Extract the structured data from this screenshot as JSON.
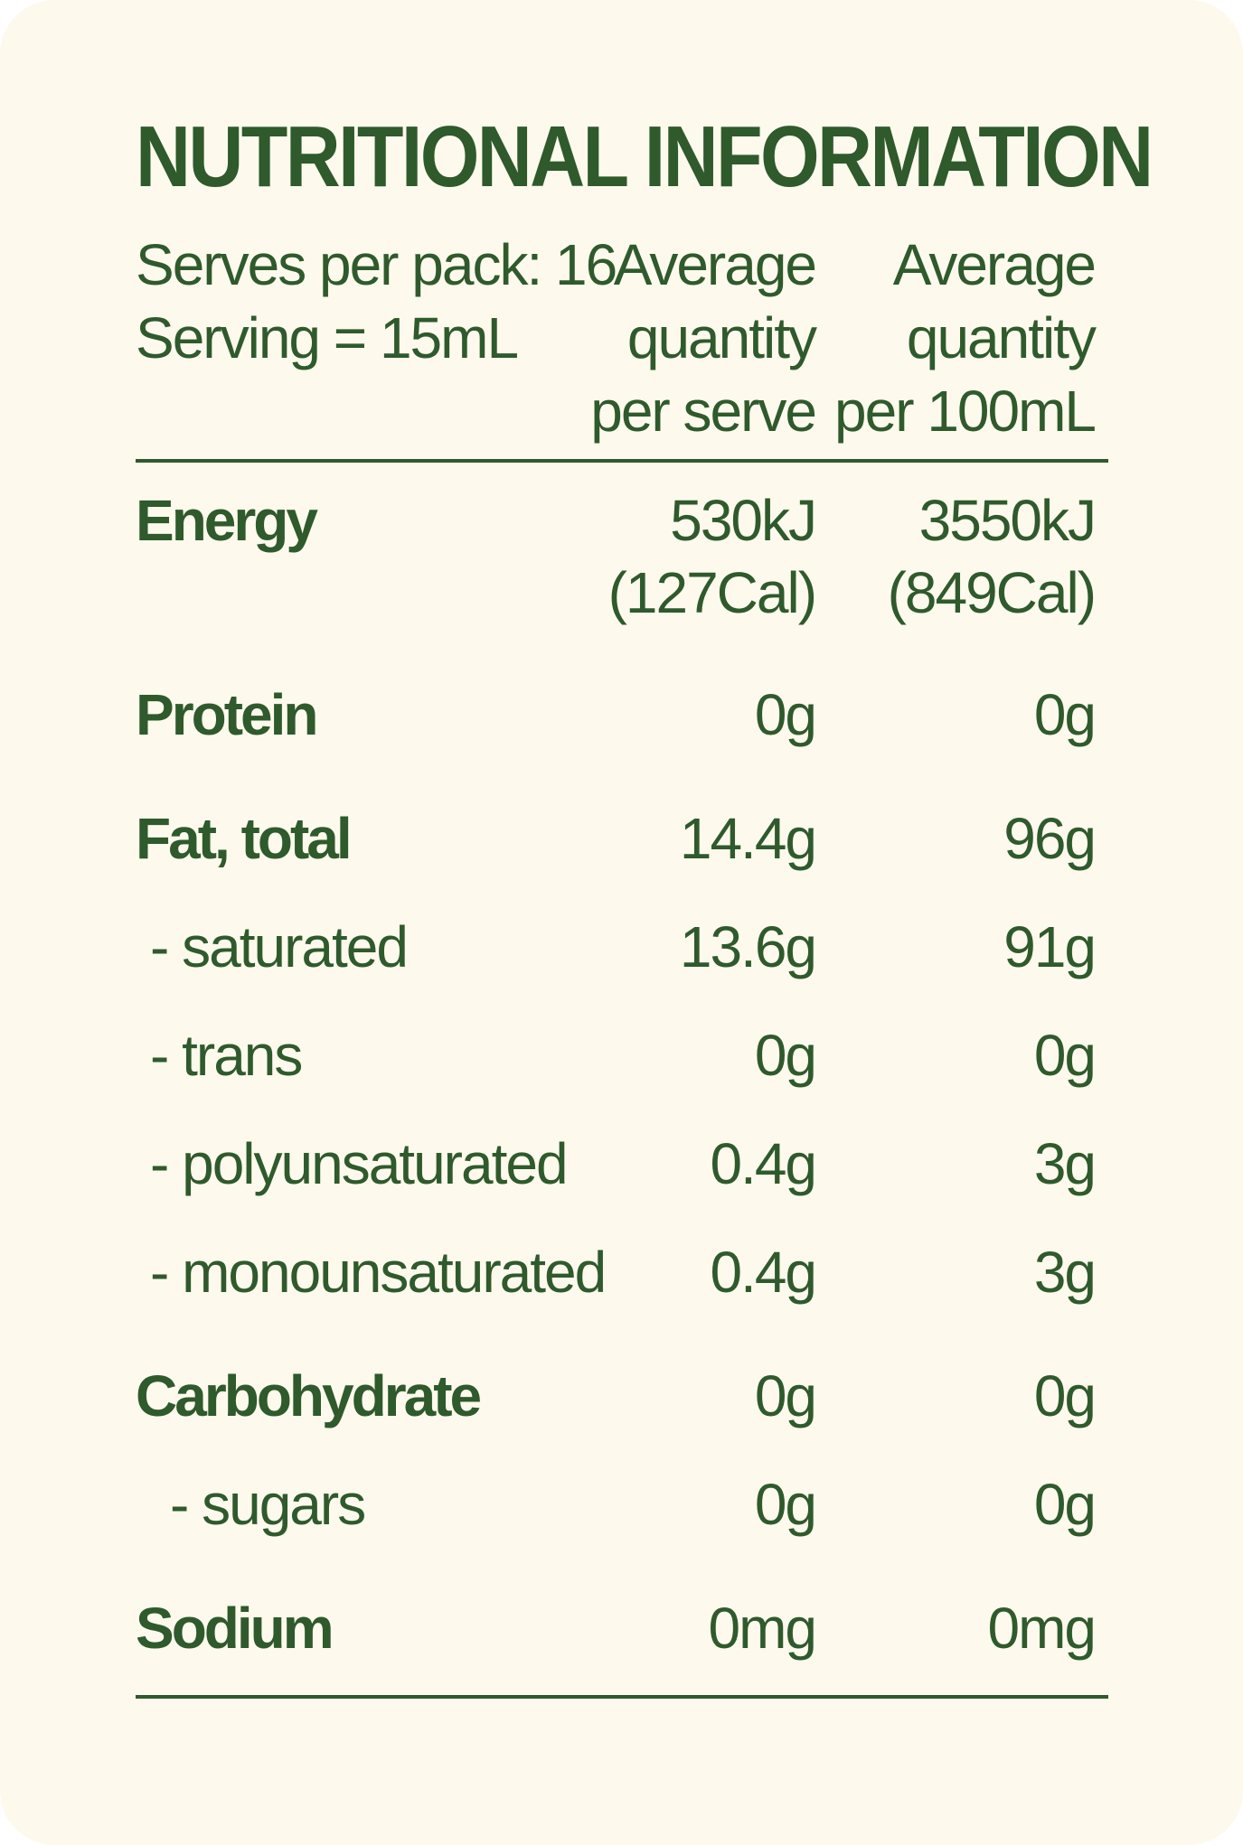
{
  "panel": {
    "title": "NUTRITIONAL INFORMATION",
    "serves_per_pack": "Serves per pack: 16",
    "serving_size": "Serving = 15mL",
    "column_headers": {
      "per_serve": [
        "Average",
        "quantity",
        "per serve"
      ],
      "per_100ml": [
        "Average",
        "quantity",
        "per 100mL"
      ]
    },
    "rows": {
      "energy": {
        "label": "Energy",
        "per_serve": [
          "530kJ",
          "(127Cal)"
        ],
        "per_100ml": [
          "3550kJ",
          "(849Cal)"
        ]
      },
      "protein": {
        "label": "Protein",
        "per_serve": "0g",
        "per_100ml": "0g"
      },
      "fat_total": {
        "label": "Fat, total",
        "per_serve": "14.4g",
        "per_100ml": "96g"
      },
      "saturated": {
        "label": "- saturated",
        "per_serve": "13.6g",
        "per_100ml": "91g"
      },
      "trans": {
        "label": "- trans",
        "per_serve": "0g",
        "per_100ml": "0g"
      },
      "polyunsaturated": {
        "label": "- polyunsaturated",
        "per_serve": "0.4g",
        "per_100ml": "3g"
      },
      "monounsaturated": {
        "label": "- monounsaturated",
        "per_serve": "0.4g",
        "per_100ml": "3g"
      },
      "carbohydrate": {
        "label": "Carbohydrate",
        "per_serve": "0g",
        "per_100ml": "0g"
      },
      "sugars": {
        "label": "- sugars",
        "per_serve": "0g",
        "per_100ml": "0g"
      },
      "sodium": {
        "label": "Sodium",
        "per_serve": "0mg",
        "per_100ml": "0mg"
      }
    }
  },
  "colors": {
    "background": "#fdf9ec",
    "text": "#2f5a2c"
  }
}
